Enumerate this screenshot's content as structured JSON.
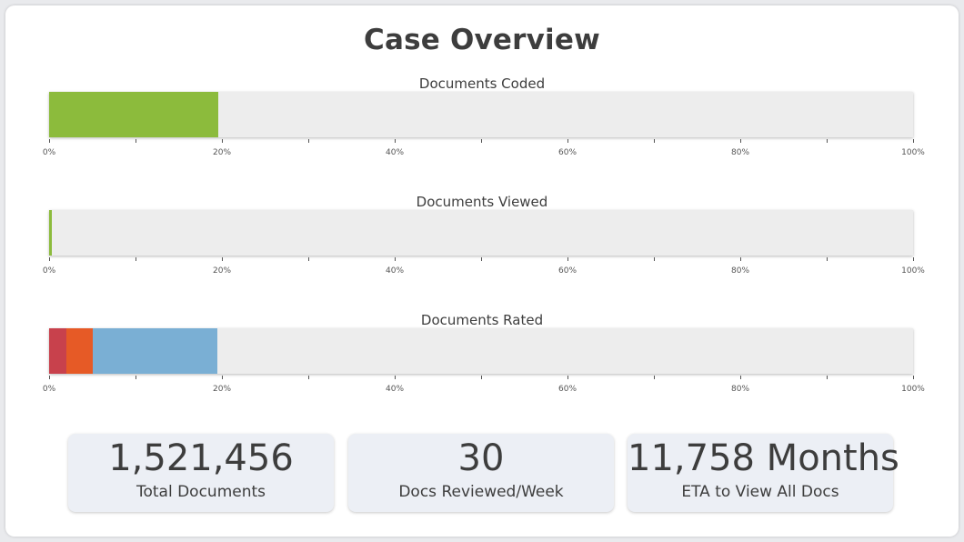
{
  "title": "Case Overview",
  "charts": [
    {
      "title": "Documents Coded",
      "segments": [
        {
          "value": 19.6,
          "color": "#8cbb3c"
        }
      ]
    },
    {
      "title": "Documents Viewed",
      "segments": [
        {
          "value": 0.3,
          "color": "#8cbb3c"
        }
      ]
    },
    {
      "title": "Documents Rated",
      "segments": [
        {
          "value": 2.0,
          "color": "#c8414c"
        },
        {
          "value": 3.0,
          "color": "#e65a26"
        },
        {
          "value": 14.5,
          "color": "#7aafd4"
        }
      ]
    }
  ],
  "axis_ticks": [
    "0%",
    "20%",
    "40%",
    "60%",
    "80%",
    "100%"
  ],
  "stats": [
    {
      "value": "1,521,456",
      "label": "Total Documents"
    },
    {
      "value": "30",
      "label": "Docs Reviewed/Week"
    },
    {
      "value": "11,758 Months",
      "label": "ETA to View All Docs"
    }
  ],
  "colors": {
    "track": "#ededed",
    "card_bg": "#ffffff",
    "stat_bg": "#eceff5"
  }
}
